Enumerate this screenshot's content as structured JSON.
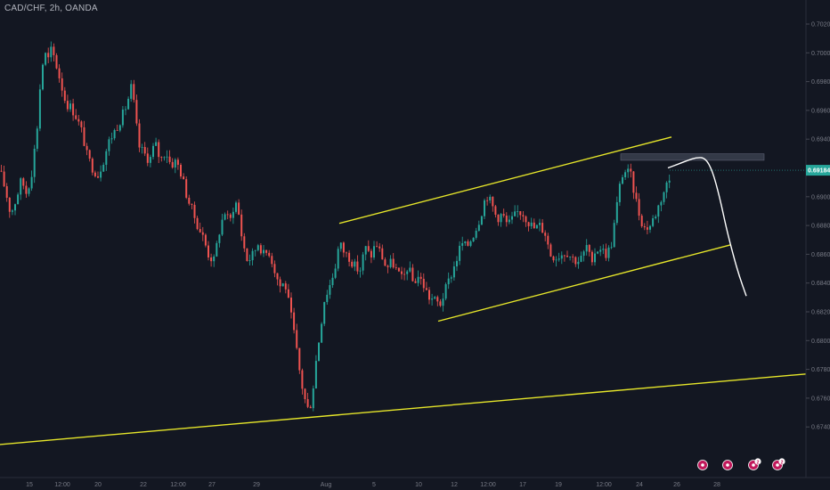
{
  "header": {
    "symbol_title": "CAD/CHF, 2h, OANDA"
  },
  "colors": {
    "background": "#131722",
    "up_candle": "#26a69a",
    "down_candle": "#ef5350",
    "trendline": "#e6e62a",
    "projection": "#ffffff",
    "resistance_zone": "#3a3f4e",
    "price_tag": "#26a69a",
    "event_marker": "#c2185b"
  },
  "chart_data": {
    "type": "candlestick",
    "title": "CAD/CHF, 2h, OANDA",
    "y_axis": {
      "position": "right",
      "range": [
        0.6725,
        0.7022
      ],
      "ticks": [
        "0.70200",
        "0.70000",
        "0.69800",
        "0.69600",
        "0.69400",
        "0.69200",
        "0.69000",
        "0.68800",
        "0.68600",
        "0.68400",
        "0.68200",
        "0.68000",
        "0.67800",
        "0.67600",
        "0.67400"
      ]
    },
    "x_axis": {
      "ticks": [
        "15",
        "12:00",
        "20",
        "22",
        "12:00",
        "27",
        "29",
        "Aug",
        "5",
        "10",
        "12",
        "12:00",
        "17",
        "19",
        "12:00",
        "24",
        "26",
        "28"
      ]
    },
    "current_price": "0.69184",
    "price_path": [
      [
        0,
        0.6918
      ],
      [
        6,
        0.6905
      ],
      [
        12,
        0.6888
      ],
      [
        18,
        0.6898
      ],
      [
        24,
        0.6912
      ],
      [
        30,
        0.6902
      ],
      [
        36,
        0.6918
      ],
      [
        42,
        0.695
      ],
      [
        46,
        0.6985
      ],
      [
        50,
        0.7
      ],
      [
        54,
        0.6995
      ],
      [
        58,
        0.7003
      ],
      [
        63,
        0.6992
      ],
      [
        68,
        0.698
      ],
      [
        74,
        0.6965
      ],
      [
        80,
        0.6962
      ],
      [
        86,
        0.6955
      ],
      [
        92,
        0.6945
      ],
      [
        98,
        0.6928
      ],
      [
        104,
        0.692
      ],
      [
        110,
        0.6915
      ],
      [
        116,
        0.6925
      ],
      [
        122,
        0.6938
      ],
      [
        128,
        0.6945
      ],
      [
        134,
        0.6952
      ],
      [
        140,
        0.696
      ],
      [
        145,
        0.697
      ],
      [
        148,
        0.6978
      ],
      [
        152,
        0.6955
      ],
      [
        156,
        0.6935
      ],
      [
        162,
        0.693
      ],
      [
        168,
        0.6925
      ],
      [
        174,
        0.6938
      ],
      [
        180,
        0.6925
      ],
      [
        186,
        0.6932
      ],
      [
        192,
        0.6922
      ],
      [
        198,
        0.6925
      ],
      [
        204,
        0.6915
      ],
      [
        210,
        0.69
      ],
      [
        216,
        0.689
      ],
      [
        222,
        0.688
      ],
      [
        228,
        0.6872
      ],
      [
        234,
        0.686
      ],
      [
        240,
        0.6855
      ],
      [
        246,
        0.6875
      ],
      [
        252,
        0.689
      ],
      [
        258,
        0.6882
      ],
      [
        264,
        0.6898
      ],
      [
        268,
        0.6888
      ],
      [
        272,
        0.687
      ],
      [
        278,
        0.6855
      ],
      [
        284,
        0.686
      ],
      [
        290,
        0.6868
      ],
      [
        296,
        0.686
      ],
      [
        302,
        0.6862
      ],
      [
        308,
        0.685
      ],
      [
        314,
        0.6838
      ],
      [
        320,
        0.684
      ],
      [
        326,
        0.682
      ],
      [
        331,
        0.6802
      ],
      [
        336,
        0.678
      ],
      [
        341,
        0.6762
      ],
      [
        346,
        0.6752
      ],
      [
        350,
        0.6758
      ],
      [
        354,
        0.6782
      ],
      [
        358,
        0.68
      ],
      [
        364,
        0.6828
      ],
      [
        370,
        0.6838
      ],
      [
        376,
        0.685
      ],
      [
        381,
        0.6868
      ],
      [
        386,
        0.6862
      ],
      [
        392,
        0.6858
      ],
      [
        398,
        0.6852
      ],
      [
        404,
        0.6848
      ],
      [
        410,
        0.6865
      ],
      [
        416,
        0.6858
      ],
      [
        422,
        0.6868
      ],
      [
        428,
        0.686
      ],
      [
        434,
        0.685
      ],
      [
        440,
        0.6855
      ],
      [
        446,
        0.6848
      ],
      [
        452,
        0.6842
      ],
      [
        458,
        0.6852
      ],
      [
        464,
        0.684
      ],
      [
        470,
        0.6845
      ],
      [
        476,
        0.6838
      ],
      [
        482,
        0.683
      ],
      [
        488,
        0.6828
      ],
      [
        494,
        0.6825
      ],
      [
        500,
        0.6835
      ],
      [
        506,
        0.6845
      ],
      [
        512,
        0.6855
      ],
      [
        518,
        0.6868
      ],
      [
        524,
        0.6865
      ],
      [
        530,
        0.6872
      ],
      [
        536,
        0.688
      ],
      [
        541,
        0.689
      ],
      [
        546,
        0.6902
      ],
      [
        552,
        0.6895
      ],
      [
        558,
        0.6885
      ],
      [
        564,
        0.6888
      ],
      [
        570,
        0.688
      ],
      [
        576,
        0.6885
      ],
      [
        582,
        0.689
      ],
      [
        588,
        0.6888
      ],
      [
        594,
        0.6882
      ],
      [
        600,
        0.6878
      ],
      [
        606,
        0.688
      ],
      [
        612,
        0.6875
      ],
      [
        618,
        0.686
      ],
      [
        624,
        0.6858
      ],
      [
        630,
        0.686
      ],
      [
        636,
        0.6862
      ],
      [
        642,
        0.6858
      ],
      [
        648,
        0.6855
      ],
      [
        654,
        0.6858
      ],
      [
        660,
        0.6868
      ],
      [
        664,
        0.6848
      ],
      [
        668,
        0.6862
      ],
      [
        674,
        0.6865
      ],
      [
        680,
        0.686
      ],
      [
        686,
        0.6865
      ],
      [
        690,
        0.6882
      ],
      [
        694,
        0.69
      ],
      [
        698,
        0.6915
      ],
      [
        703,
        0.6918
      ],
      [
        708,
        0.6915
      ],
      [
        714,
        0.6898
      ],
      [
        719,
        0.6885
      ],
      [
        724,
        0.6878
      ],
      [
        730,
        0.688
      ],
      [
        736,
        0.6888
      ],
      [
        742,
        0.6898
      ],
      [
        748,
        0.6908
      ],
      [
        752,
        0.6912
      ]
    ],
    "annotations": [
      {
        "type": "trendline",
        "label": "channel upper",
        "from": [
          381,
          0.68815
        ],
        "to": [
          754,
          0.69415
        ]
      },
      {
        "type": "trendline",
        "label": "channel lower",
        "from": [
          492,
          0.68135
        ],
        "to": [
          820,
          0.68665
        ]
      },
      {
        "type": "trendline",
        "label": "long-term support",
        "from": [
          0,
          0.67278
        ],
        "to": [
          905,
          0.67768
        ]
      },
      {
        "type": "zone",
        "label": "resistance",
        "from": [
          697,
          0.69298
        ],
        "to": [
          858,
          0.69253
        ]
      },
      {
        "type": "projection",
        "label": "forecast path",
        "points": [
          [
            750,
            0.692
          ],
          [
            762,
            0.69228
          ],
          [
            772,
            0.69252
          ],
          [
            782,
            0.69273
          ],
          [
            792,
            0.6927
          ],
          [
            800,
            0.6918
          ],
          [
            808,
            0.69
          ],
          [
            816,
            0.6877
          ],
          [
            824,
            0.6858
          ],
          [
            830,
            0.6845
          ],
          [
            838,
            0.6831
          ]
        ]
      }
    ],
    "event_markers": [
      {
        "kind": "single"
      },
      {
        "kind": "single"
      },
      {
        "kind": "group",
        "count": "2"
      },
      {
        "kind": "group",
        "count": "2"
      }
    ]
  }
}
